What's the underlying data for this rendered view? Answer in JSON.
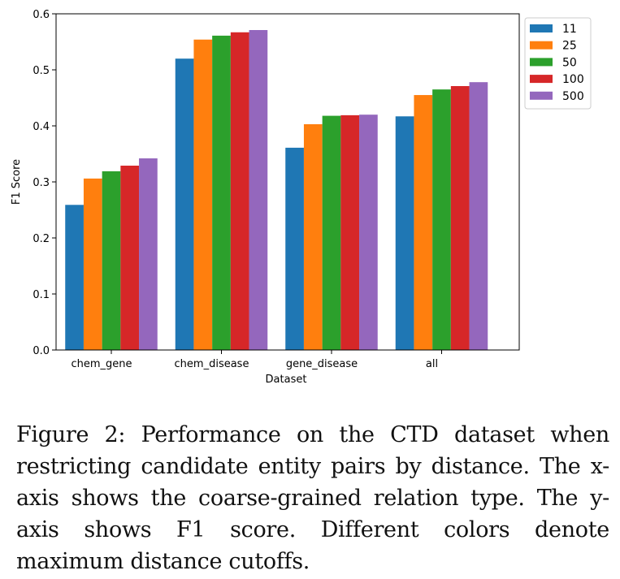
{
  "chart_data": {
    "type": "bar",
    "title": "",
    "xlabel": "Dataset",
    "ylabel": "F1 Score",
    "ylim": [
      0.0,
      0.6
    ],
    "yticks": [
      "0.0",
      "0.1",
      "0.2",
      "0.3",
      "0.4",
      "0.5",
      "0.6"
    ],
    "grid": false,
    "legend_position": "outside-top-right",
    "categories": [
      "chem_gene",
      "chem_disease",
      "gene_disease",
      "all"
    ],
    "series": [
      {
        "name": "11",
        "color": "#1f77b4",
        "values": [
          0.259,
          0.52,
          0.361,
          0.417
        ]
      },
      {
        "name": "25",
        "color": "#ff7f0e",
        "values": [
          0.306,
          0.554,
          0.403,
          0.455
        ]
      },
      {
        "name": "50",
        "color": "#2ca02c",
        "values": [
          0.319,
          0.561,
          0.418,
          0.465
        ]
      },
      {
        "name": "100",
        "color": "#d62728",
        "values": [
          0.329,
          0.567,
          0.419,
          0.471
        ]
      },
      {
        "name": "500",
        "color": "#9467bd",
        "values": [
          0.342,
          0.571,
          0.42,
          0.478
        ]
      }
    ]
  },
  "caption": "Figure 2: Performance on the CTD dataset when restricting candidate entity pairs by distance. The x-axis shows the coarse-grained relation type. The y-axis shows F1 score. Different colors denote maximum distance cutoffs."
}
